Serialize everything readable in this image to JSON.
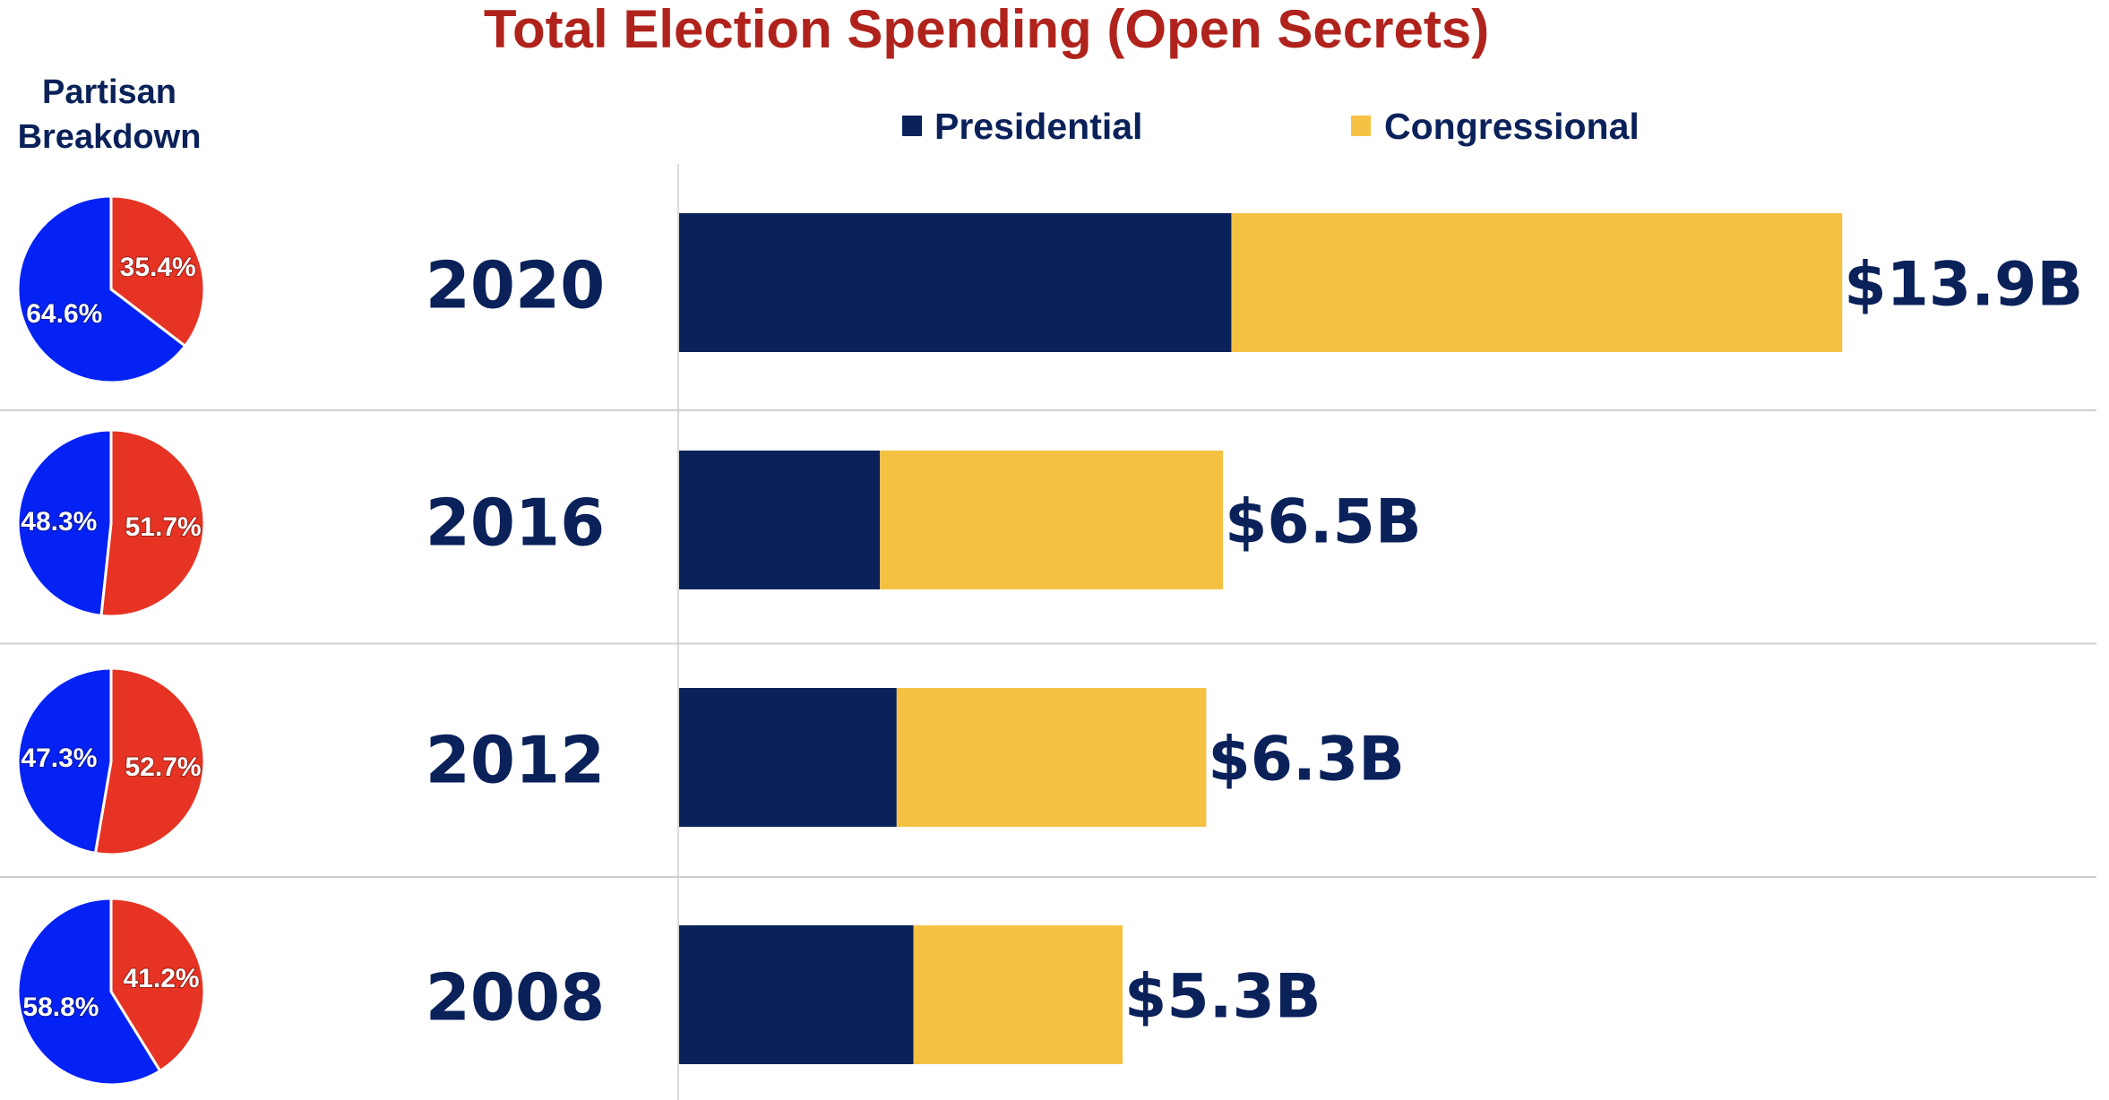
{
  "chart_data": {
    "type": "bar",
    "stacked": true,
    "orientation": "horizontal",
    "title": "Total Election Spending (Open Secrets)",
    "xlabel": "",
    "ylabel": "",
    "units": "billions USD",
    "xlim": [
      0,
      14
    ],
    "grid": false,
    "legend": {
      "placement": "top-right",
      "entries": [
        "Presidential",
        "Congressional"
      ]
    },
    "categories": [
      "2020",
      "2016",
      "2012",
      "2008"
    ],
    "series": [
      {
        "name": "Presidential",
        "color": "#0A2159",
        "values": [
          6.6,
          2.4,
          2.6,
          2.8
        ]
      },
      {
        "name": "Congressional",
        "color": "#F5C143",
        "values": [
          7.3,
          4.1,
          3.7,
          2.5
        ]
      }
    ],
    "totals": [
      13.9,
      6.5,
      6.3,
      5.3
    ],
    "total_labels": [
      "$13.9B",
      "$6.5B",
      "$6.3B",
      "$5.3B"
    ],
    "partisan_breakdown": {
      "heading": [
        "Partisan",
        "Breakdown"
      ],
      "type": "pie",
      "slices": [
        {
          "year": "2020",
          "red": 35.4,
          "blue": 64.6,
          "red_label": "35.4%",
          "blue_label": "64.6%"
        },
        {
          "year": "2016",
          "red": 51.7,
          "blue": 48.3,
          "red_label": "51.7%",
          "blue_label": "48.3%"
        },
        {
          "year": "2012",
          "red": 52.7,
          "blue": 47.3,
          "red_label": "52.7%",
          "blue_label": "47.3%"
        },
        {
          "year": "2008",
          "red": 41.2,
          "blue": 58.8,
          "red_label": "41.2%",
          "blue_label": "58.8%"
        }
      ],
      "colors": {
        "red": "#E63323",
        "blue": "#0522F4"
      }
    }
  }
}
